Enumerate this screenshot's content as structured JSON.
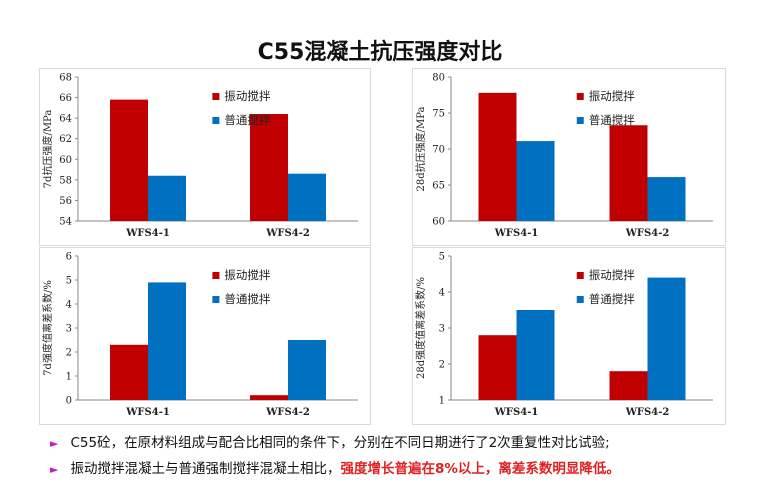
{
  "title": "C55混凝土抗压强度对比",
  "colors": {
    "vibration": "#c00000",
    "ordinary": "#0070c0"
  },
  "bullets": [
    {
      "icon": "triangle-right-icon",
      "text": "C55砼，在原材料组成与配合比相同的条件下，分别在不同日期进行了2次重复性对比试验;",
      "highlight": ""
    },
    {
      "icon": "triangle-right-icon",
      "text": "振动搅拌混凝土与普通强制搅拌混凝土相比，",
      "highlight": "强度增长普遍在8%以上，离差系数明显降低。"
    }
  ],
  "chart_data": [
    {
      "type": "bar",
      "categories": [
        "WFS4-1",
        "WFS4-2"
      ],
      "series": [
        {
          "name": "振动搅拌",
          "values": [
            65.8,
            64.4
          ]
        },
        {
          "name": "普通搅拌",
          "values": [
            58.4,
            58.6
          ]
        }
      ],
      "title": "",
      "xlabel": "",
      "ylabel": "7d抗压强度/MPa",
      "ylim": [
        54,
        68
      ],
      "yticks": [
        54,
        56,
        58,
        60,
        62,
        64,
        66,
        68
      ],
      "legend": "top-right",
      "grid": false
    },
    {
      "type": "bar",
      "categories": [
        "WFS4-1",
        "WFS4-2"
      ],
      "series": [
        {
          "name": "振动搅拌",
          "values": [
            77.8,
            73.3
          ]
        },
        {
          "name": "普通搅拌",
          "values": [
            71.1,
            66.1
          ]
        }
      ],
      "title": "",
      "xlabel": "",
      "ylabel": "28d抗压强度/MPa",
      "ylim": [
        60,
        80
      ],
      "yticks": [
        60,
        65,
        70,
        75,
        80
      ],
      "legend": "top-right",
      "grid": false
    },
    {
      "type": "bar",
      "categories": [
        "WFS4-1",
        "WFS4-2"
      ],
      "series": [
        {
          "name": "振动搅拌",
          "values": [
            2.3,
            0.2
          ]
        },
        {
          "name": "普通搅拌",
          "values": [
            4.9,
            2.5
          ]
        }
      ],
      "title": "",
      "xlabel": "",
      "ylabel": "7d强度值离差系数/%",
      "ylim": [
        0,
        6
      ],
      "yticks": [
        0,
        1,
        2,
        3,
        4,
        5,
        6
      ],
      "legend": "top-right",
      "grid": false
    },
    {
      "type": "bar",
      "categories": [
        "WFS4-1",
        "WFS4-2"
      ],
      "series": [
        {
          "name": "振动搅拌",
          "values": [
            2.8,
            1.8
          ]
        },
        {
          "name": "普通搅拌",
          "values": [
            3.5,
            4.4
          ]
        }
      ],
      "title": "",
      "xlabel": "",
      "ylabel": "28d强度值离差系数/%",
      "ylim": [
        1,
        5
      ],
      "yticks": [
        1,
        2,
        3,
        4,
        5
      ],
      "legend": "top-right",
      "grid": false
    }
  ]
}
